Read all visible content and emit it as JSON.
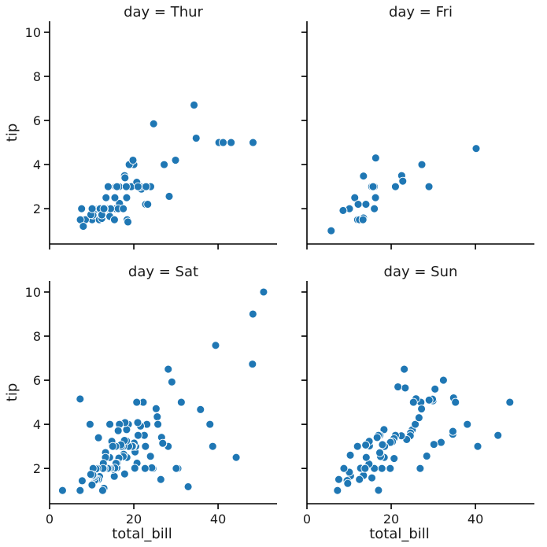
{
  "chart_data": {
    "type": "scatter",
    "xlabel": "total_bill",
    "ylabel": "tip",
    "xlim": [
      0,
      54
    ],
    "ylim": [
      0.4,
      10.5
    ],
    "xticks": [
      0,
      20,
      40
    ],
    "yticks": [
      2,
      4,
      6,
      8,
      10
    ],
    "color": "#1f77b4",
    "grid": false,
    "panels": [
      {
        "title": "day = Thur",
        "points": [
          [
            27.2,
            4.0
          ],
          [
            22.8,
            2.2
          ],
          [
            19.4,
            3.0
          ],
          [
            48.3,
            5.0
          ],
          [
            29.9,
            4.2
          ],
          [
            18.3,
            2.5
          ],
          [
            15.7,
            3.0
          ],
          [
            16.5,
            3.0
          ],
          [
            24.7,
            5.85
          ],
          [
            34.8,
            5.2
          ],
          [
            12.3,
            2.0
          ],
          [
            10.1,
            1.5
          ],
          [
            10.3,
            1.71
          ],
          [
            13.8,
            2.0
          ],
          [
            8.5,
            1.5
          ],
          [
            13.0,
            2.0
          ],
          [
            11.8,
            1.5
          ],
          [
            13.4,
            2.5
          ],
          [
            16.5,
            2.0
          ],
          [
            16.2,
            2.0
          ],
          [
            11.4,
            1.98
          ],
          [
            21.8,
            2.89
          ],
          [
            18.4,
            1.5
          ],
          [
            17.0,
            2.0
          ],
          [
            20.0,
            4.0
          ],
          [
            21.5,
            3.0
          ],
          [
            24.0,
            3.0
          ],
          [
            15.7,
            2.0
          ],
          [
            34.3,
            6.7
          ],
          [
            40.2,
            5.0
          ],
          [
            41.2,
            5.0
          ],
          [
            43.1,
            5.0
          ],
          [
            16.6,
            2.24
          ],
          [
            14.3,
            1.65
          ],
          [
            13.9,
            3.0
          ],
          [
            7.3,
            1.5
          ],
          [
            8.0,
            1.2
          ],
          [
            12.4,
            1.56
          ],
          [
            11.9,
            2.0
          ],
          [
            15.5,
            2.5
          ],
          [
            9.8,
            1.73
          ],
          [
            18.9,
            4.0
          ],
          [
            16.0,
            3.0
          ],
          [
            10.1,
            2.0
          ],
          [
            17.8,
            3.5
          ],
          [
            19.8,
            4.2
          ],
          [
            20.7,
            3.2
          ],
          [
            13.6,
            2.0
          ],
          [
            12.0,
            2.0
          ],
          [
            23.3,
            2.2
          ],
          [
            14.5,
            2.0
          ],
          [
            28.4,
            2.56
          ],
          [
            16.3,
            2.0
          ],
          [
            12.4,
            1.72
          ],
          [
            13.0,
            2.0
          ],
          [
            22.9,
            3.0
          ],
          [
            15.4,
            1.5
          ],
          [
            18.2,
            3.0
          ],
          [
            21.0,
            3.0
          ],
          [
            17.5,
            2.0
          ],
          [
            12.9,
            2.0
          ],
          [
            7.6,
            2.0
          ],
          [
            18.6,
            1.4
          ],
          [
            17.9,
            3.4
          ]
        ]
      },
      {
        "title": "day = Fri",
        "points": [
          [
            28.97,
            3.0
          ],
          [
            22.49,
            3.5
          ],
          [
            5.75,
            1.0
          ],
          [
            16.32,
            4.3
          ],
          [
            22.75,
            3.25
          ],
          [
            40.17,
            4.73
          ],
          [
            27.28,
            4.0
          ],
          [
            12.03,
            1.5
          ],
          [
            21.01,
            3.0
          ],
          [
            12.46,
            1.5
          ],
          [
            11.35,
            2.5
          ],
          [
            15.38,
            3.0
          ],
          [
            13.42,
            3.48
          ],
          [
            16.27,
            2.5
          ],
          [
            10.09,
            2.0
          ],
          [
            8.58,
            1.92
          ],
          [
            15.98,
            3.0
          ],
          [
            13.42,
            1.58
          ],
          [
            16.0,
            2.0
          ],
          [
            12.16,
            2.2
          ],
          [
            13.3,
            1.5
          ],
          [
            14.0,
            2.2
          ],
          [
            15.7,
            3.0
          ]
        ]
      },
      {
        "title": "day = Sat",
        "points": [
          [
            50.81,
            10.0
          ],
          [
            48.27,
            9.0
          ],
          [
            48.17,
            6.73
          ],
          [
            39.42,
            7.58
          ],
          [
            44.3,
            2.5
          ],
          [
            38.07,
            4.0
          ],
          [
            38.73,
            3.0
          ],
          [
            35.83,
            4.67
          ],
          [
            32.9,
            1.17
          ],
          [
            31.27,
            5.0
          ],
          [
            29.03,
            5.92
          ],
          [
            28.15,
            3.0
          ],
          [
            28.17,
            6.5
          ],
          [
            30.46,
            2.0
          ],
          [
            30.06,
            2.0
          ],
          [
            26.59,
            3.41
          ],
          [
            25.56,
            4.34
          ],
          [
            26.41,
            1.5
          ],
          [
            26.88,
            3.12
          ],
          [
            25.29,
            4.71
          ],
          [
            25.71,
            4.0
          ],
          [
            26.86,
            3.14
          ],
          [
            24.55,
            2.0
          ],
          [
            24.27,
            2.03
          ],
          [
            23.95,
            2.55
          ],
          [
            22.49,
            3.5
          ],
          [
            23.1,
            4.0
          ],
          [
            22.23,
            5.0
          ],
          [
            22.76,
            3.0
          ],
          [
            22.67,
            2.0
          ],
          [
            21.58,
            3.92
          ],
          [
            21.01,
            3.5
          ],
          [
            20.76,
            2.24
          ],
          [
            20.29,
            2.75
          ],
          [
            20.69,
            5.0
          ],
          [
            20.45,
            3.0
          ],
          [
            20.08,
            3.15
          ],
          [
            20.92,
            4.08
          ],
          [
            20.23,
            2.01
          ],
          [
            19.81,
            3.0
          ],
          [
            19.44,
            3.0
          ],
          [
            19.65,
            3.0
          ],
          [
            18.78,
            3.0
          ],
          [
            18.71,
            4.0
          ],
          [
            18.29,
            3.76
          ],
          [
            18.24,
            3.25
          ],
          [
            18.35,
            2.5
          ],
          [
            17.92,
            4.08
          ],
          [
            17.51,
            3.0
          ],
          [
            17.78,
            3.27
          ],
          [
            17.59,
            2.64
          ],
          [
            17.46,
            2.54
          ],
          [
            17.82,
            1.75
          ],
          [
            17.07,
            3.0
          ],
          [
            16.93,
            3.07
          ],
          [
            16.58,
            4.0
          ],
          [
            16.45,
            2.47
          ],
          [
            16.29,
            3.71
          ],
          [
            16.04,
            2.24
          ],
          [
            15.98,
            2.03
          ],
          [
            15.77,
            2.23
          ],
          [
            15.69,
            3.0
          ],
          [
            15.36,
            1.64
          ],
          [
            15.04,
            1.96
          ],
          [
            15.48,
            2.02
          ],
          [
            14.83,
            3.02
          ],
          [
            14.78,
            3.23
          ],
          [
            14.52,
            2.0
          ],
          [
            14.31,
            4.0
          ],
          [
            14.26,
            2.5
          ],
          [
            14.15,
            2.0
          ],
          [
            13.81,
            2.0
          ],
          [
            13.39,
            2.61
          ],
          [
            13.28,
            2.72
          ],
          [
            13.03,
            2.0
          ],
          [
            13.27,
            2.5
          ],
          [
            12.74,
            2.01
          ],
          [
            12.76,
            2.23
          ],
          [
            12.69,
            2.0
          ],
          [
            12.9,
            1.1
          ],
          [
            12.6,
            1.0
          ],
          [
            11.61,
            3.39
          ],
          [
            11.87,
            1.63
          ],
          [
            11.59,
            1.5
          ],
          [
            11.38,
            2.0
          ],
          [
            11.17,
            1.5
          ],
          [
            11.02,
            1.98
          ],
          [
            10.77,
            1.47
          ],
          [
            10.59,
            1.61
          ],
          [
            10.33,
            2.0
          ],
          [
            10.34,
            1.66
          ],
          [
            10.27,
            1.71
          ],
          [
            10.07,
            1.25
          ],
          [
            9.78,
            1.73
          ],
          [
            9.6,
            4.0
          ],
          [
            7.74,
            1.44
          ],
          [
            7.25,
            1.0
          ],
          [
            3.07,
            1.0
          ],
          [
            7.25,
            5.15
          ],
          [
            15.0,
            3.0
          ]
        ]
      },
      {
        "title": "day = Sun",
        "points": [
          [
            48.17,
            5.0
          ],
          [
            45.35,
            3.5
          ],
          [
            40.55,
            3.0
          ],
          [
            38.07,
            4.0
          ],
          [
            34.63,
            3.55
          ],
          [
            34.81,
            5.2
          ],
          [
            34.65,
            3.68
          ],
          [
            35.26,
            5.0
          ],
          [
            32.4,
            6.0
          ],
          [
            31.85,
            3.18
          ],
          [
            30.4,
            5.6
          ],
          [
            29.93,
            5.07
          ],
          [
            30.14,
            3.09
          ],
          [
            29.8,
            5.14
          ],
          [
            28.44,
            2.56
          ],
          [
            27.05,
            5.0
          ],
          [
            26.88,
            2.0
          ],
          [
            25.89,
            5.16
          ],
          [
            25.28,
            5.0
          ],
          [
            25.0,
            3.75
          ],
          [
            25.71,
            4.0
          ],
          [
            24.59,
            3.61
          ],
          [
            24.52,
            3.48
          ],
          [
            23.68,
            3.31
          ],
          [
            23.33,
            5.65
          ],
          [
            22.42,
            3.48
          ],
          [
            21.01,
            3.5
          ],
          [
            20.69,
            2.45
          ],
          [
            20.65,
            3.35
          ],
          [
            20.29,
            3.21
          ],
          [
            19.82,
            3.18
          ],
          [
            19.77,
            2.0
          ],
          [
            18.43,
            3.0
          ],
          [
            18.29,
            3.76
          ],
          [
            18.35,
            2.5
          ],
          [
            17.92,
            3.08
          ],
          [
            17.31,
            3.5
          ],
          [
            17.26,
            2.74
          ],
          [
            17.46,
            2.54
          ],
          [
            17.29,
            2.71
          ],
          [
            16.97,
            3.5
          ],
          [
            16.99,
            1.01
          ],
          [
            16.66,
            3.4
          ],
          [
            16.31,
            2.0
          ],
          [
            16.21,
            2.0
          ],
          [
            16.0,
            2.0
          ],
          [
            15.42,
            1.57
          ],
          [
            14.83,
            3.02
          ],
          [
            14.78,
            3.23
          ],
          [
            14.73,
            2.2
          ],
          [
            14.07,
            2.5
          ],
          [
            13.94,
            3.06
          ],
          [
            13.42,
            1.68
          ],
          [
            13.37,
            2.0
          ],
          [
            12.74,
            2.01
          ],
          [
            12.46,
            1.5
          ],
          [
            10.34,
            1.66
          ],
          [
            10.29,
            2.6
          ],
          [
            10.07,
            1.83
          ],
          [
            9.55,
            1.45
          ],
          [
            9.68,
            1.32
          ],
          [
            8.77,
            2.0
          ],
          [
            7.56,
            1.5
          ],
          [
            7.25,
            1.0
          ],
          [
            21.6,
            5.7
          ],
          [
            23.1,
            6.5
          ],
          [
            27.2,
            4.7
          ],
          [
            26.6,
            4.3
          ],
          [
            17.8,
            2.0
          ],
          [
            13.8,
            2.0
          ],
          [
            12.0,
            3.0
          ],
          [
            29.0,
            5.1
          ]
        ]
      }
    ]
  }
}
